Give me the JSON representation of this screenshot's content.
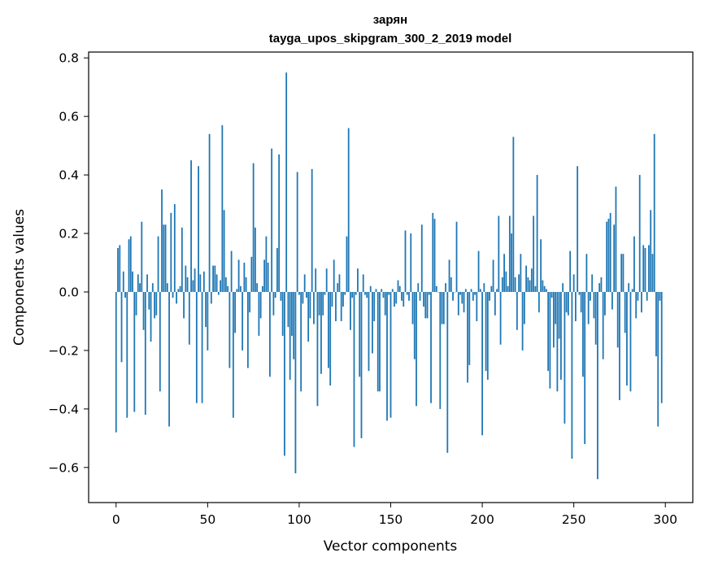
{
  "chart_data": {
    "type": "bar",
    "title_line1": "зарян",
    "title_line2": "tayga_upos_skipgram_300_2_2019 model",
    "xlabel": "Vector components",
    "ylabel": "Components values",
    "xlim": [
      -15,
      315
    ],
    "ylim": [
      -0.72,
      0.82
    ],
    "xticks": [
      0,
      50,
      100,
      150,
      200,
      250,
      300
    ],
    "xtick_labels": [
      "0",
      "50",
      "100",
      "150",
      "200",
      "250",
      "300"
    ],
    "yticks": [
      -0.6,
      -0.4,
      -0.2,
      0.0,
      0.2,
      0.4,
      0.6,
      0.8
    ],
    "ytick_labels": [
      "−0.6",
      "−0.4",
      "−0.2",
      "0.0",
      "0.2",
      "0.4",
      "0.6",
      "0.8"
    ],
    "bar_color": "#1f77b4",
    "values": [
      -0.48,
      0.15,
      0.16,
      -0.24,
      0.07,
      -0.02,
      -0.43,
      0.18,
      0.19,
      0.07,
      -0.41,
      -0.08,
      0.06,
      0.03,
      0.24,
      -0.13,
      -0.42,
      0.06,
      -0.06,
      -0.17,
      0.03,
      -0.09,
      -0.08,
      0.19,
      -0.34,
      0.35,
      0.23,
      0.23,
      0.03,
      -0.46,
      0.27,
      -0.02,
      0.3,
      -0.04,
      0.01,
      0.02,
      0.22,
      -0.09,
      0.09,
      0.05,
      -0.18,
      0.45,
      0.04,
      0.08,
      -0.38,
      0.43,
      0.06,
      -0.38,
      0.07,
      -0.12,
      -0.2,
      0.54,
      -0.04,
      0.09,
      0.09,
      0.06,
      -0.01,
      0.04,
      0.57,
      0.28,
      0.05,
      0.02,
      -0.26,
      0.14,
      -0.43,
      -0.14,
      0.01,
      0.11,
      0.02,
      -0.2,
      0.1,
      0.05,
      -0.26,
      -0.07,
      0.12,
      0.44,
      0.22,
      0.03,
      -0.15,
      -0.09,
      0.02,
      0.11,
      0.19,
      0.1,
      -0.29,
      0.49,
      -0.08,
      -0.02,
      0.15,
      0.47,
      -0.03,
      -0.15,
      -0.56,
      0.75,
      -0.12,
      -0.3,
      -0.15,
      -0.23,
      -0.62,
      0.41,
      -0.01,
      -0.34,
      -0.04,
      0.06,
      -0.02,
      -0.17,
      -0.09,
      0.42,
      -0.11,
      0.08,
      -0.39,
      -0.08,
      -0.28,
      -0.08,
      -0.01,
      0.08,
      -0.26,
      -0.32,
      -0.05,
      0.11,
      -0.1,
      0.03,
      0.06,
      -0.1,
      -0.05,
      -0.01,
      0.19,
      0.56,
      -0.13,
      -0.02,
      -0.53,
      -0.01,
      0.08,
      -0.29,
      -0.5,
      0.06,
      -0.01,
      -0.02,
      -0.27,
      0.02,
      -0.21,
      -0.1,
      0.01,
      -0.34,
      -0.34,
      0.01,
      -0.02,
      -0.08,
      -0.44,
      -0.01,
      -0.43,
      0.01,
      -0.05,
      -0.04,
      0.04,
      0.02,
      -0.03,
      -0.05,
      0.21,
      -0.01,
      -0.03,
      0.2,
      -0.11,
      -0.23,
      -0.39,
      0.03,
      -0.03,
      0.23,
      -0.05,
      -0.09,
      -0.09,
      -0.01,
      -0.38,
      0.27,
      0.25,
      0.02,
      0.0,
      -0.4,
      -0.11,
      -0.11,
      0.03,
      -0.55,
      0.11,
      0.05,
      -0.03,
      0.0,
      0.24,
      -0.08,
      -0.01,
      -0.04,
      -0.07,
      0.01,
      -0.31,
      -0.25,
      0.01,
      -0.03,
      -0.01,
      -0.1,
      0.14,
      0.01,
      -0.49,
      0.03,
      -0.27,
      -0.3,
      -0.03,
      0.02,
      0.11,
      -0.08,
      0.01,
      0.26,
      -0.18,
      0.05,
      0.13,
      0.07,
      0.02,
      0.26,
      0.2,
      0.53,
      0.05,
      -0.13,
      0.06,
      0.13,
      -0.2,
      -0.11,
      0.09,
      0.05,
      0.04,
      0.08,
      0.26,
      0.02,
      0.4,
      -0.07,
      0.18,
      0.04,
      0.02,
      0.01,
      -0.27,
      -0.33,
      -0.02,
      -0.19,
      -0.11,
      -0.34,
      -0.16,
      -0.3,
      0.03,
      -0.45,
      -0.07,
      -0.08,
      0.14,
      -0.57,
      0.06,
      -0.1,
      0.43,
      -0.01,
      -0.07,
      -0.29,
      -0.52,
      0.13,
      -0.11,
      -0.03,
      0.06,
      -0.09,
      -0.18,
      -0.64,
      0.03,
      0.05,
      -0.23,
      -0.08,
      0.24,
      0.25,
      0.27,
      -0.06,
      0.23,
      0.36,
      -0.19,
      -0.37,
      0.13,
      0.13,
      -0.14,
      -0.32,
      0.03,
      -0.34,
      0.01,
      0.19,
      -0.09,
      -0.03,
      0.4,
      -0.07,
      0.16,
      0.15,
      -0.03,
      0.16,
      0.28,
      0.13,
      0.54,
      -0.22,
      -0.46,
      -0.03,
      -0.38
    ]
  }
}
